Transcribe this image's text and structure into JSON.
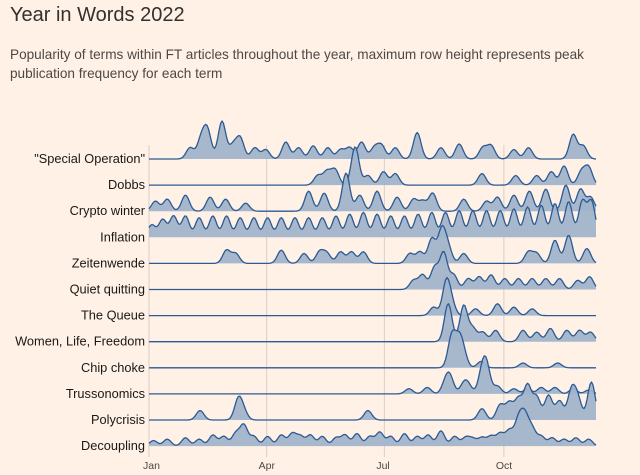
{
  "title": "Year in Words 2022",
  "subtitle": "Popularity of terms within FT articles throughout the year, maximum row height represents peak publication frequency for each term",
  "colors": {
    "background": "#fff1e5",
    "fill": "#9fb3cb",
    "stroke": "#2b5a94",
    "grid": "#d9cfc6",
    "text": "#33302e"
  },
  "chart_data": {
    "type": "ridgeline",
    "x_ticks": [
      "Jan",
      "Apr",
      "Jul",
      "Oct"
    ],
    "x_range": [
      "Jan",
      "Dec"
    ],
    "grid": "vertical lines at ticks",
    "series": [
      {
        "name": "\"Special Operation\"",
        "peaks": [
          [
            4.5,
            0.3
          ],
          [
            5.7,
            0.5
          ],
          [
            6.4,
            0.75
          ],
          [
            8.0,
            1.0
          ],
          [
            9.2,
            0.35
          ],
          [
            10.0,
            0.55
          ],
          [
            11.6,
            0.3
          ],
          [
            12.8,
            0.25
          ],
          [
            15.0,
            0.45
          ],
          [
            16.4,
            0.3
          ],
          [
            18.0,
            0.35
          ],
          [
            19.6,
            0.3
          ],
          [
            21.0,
            0.25
          ],
          [
            22.0,
            0.3
          ],
          [
            23.3,
            0.45
          ],
          [
            24.7,
            0.3
          ],
          [
            25.5,
            0.35
          ],
          [
            27.0,
            0.3
          ],
          [
            29.4,
            0.7
          ],
          [
            32.0,
            0.3
          ],
          [
            34.0,
            0.4
          ],
          [
            36.6,
            0.3
          ],
          [
            37.5,
            0.35
          ],
          [
            40.0,
            0.25
          ],
          [
            41.6,
            0.3
          ],
          [
            46.5,
            0.65
          ],
          [
            47.6,
            0.35
          ]
        ]
      },
      {
        "name": "Dobbs",
        "peaks": [
          [
            18.5,
            0.25
          ],
          [
            19.5,
            0.35
          ],
          [
            20.4,
            0.4
          ],
          [
            22.6,
            1.0
          ],
          [
            24.0,
            0.25
          ],
          [
            25.7,
            0.35
          ],
          [
            27.0,
            0.3
          ],
          [
            36.5,
            0.3
          ],
          [
            40.2,
            0.25
          ],
          [
            42.5,
            0.25
          ],
          [
            44.1,
            0.35
          ],
          [
            45.5,
            0.5
          ],
          [
            47.4,
            0.35
          ],
          [
            48.2,
            0.45
          ]
        ]
      },
      {
        "name": "Crypto winter",
        "peaks": [
          [
            0.7,
            0.25
          ],
          [
            2.0,
            0.3
          ],
          [
            4.0,
            0.4
          ],
          [
            6.7,
            0.35
          ],
          [
            8.4,
            0.3
          ],
          [
            10.6,
            0.2
          ],
          [
            17.5,
            0.5
          ],
          [
            19.2,
            0.45
          ],
          [
            21.6,
            0.95
          ],
          [
            23.1,
            0.4
          ],
          [
            25.0,
            0.5
          ],
          [
            27.2,
            0.35
          ],
          [
            29.0,
            0.3
          ],
          [
            30.0,
            0.25
          ],
          [
            31.1,
            0.45
          ],
          [
            34.5,
            0.3
          ],
          [
            37.0,
            0.25
          ],
          [
            38.2,
            0.35
          ],
          [
            40.0,
            0.4
          ],
          [
            41.7,
            0.5
          ],
          [
            43.5,
            0.55
          ],
          [
            45.7,
            0.65
          ],
          [
            47.3,
            0.55
          ],
          [
            48.4,
            0.35
          ]
        ]
      },
      {
        "name": "Inflation",
        "peaks": [
          [
            0.3,
            0.35
          ],
          [
            1.5,
            0.5
          ],
          [
            2.7,
            0.6
          ],
          [
            4.0,
            0.6
          ],
          [
            5.5,
            0.55
          ],
          [
            7.0,
            0.6
          ],
          [
            8.5,
            0.6
          ],
          [
            10.0,
            0.55
          ],
          [
            11.5,
            0.55
          ],
          [
            13.0,
            0.55
          ],
          [
            14.5,
            0.55
          ],
          [
            16.0,
            0.55
          ],
          [
            17.5,
            0.55
          ],
          [
            19.0,
            0.55
          ],
          [
            20.5,
            0.6
          ],
          [
            22.0,
            0.65
          ],
          [
            23.5,
            0.7
          ],
          [
            25.0,
            0.65
          ],
          [
            26.5,
            0.6
          ],
          [
            28.0,
            0.6
          ],
          [
            29.5,
            0.65
          ],
          [
            31.0,
            0.7
          ],
          [
            32.5,
            0.7
          ],
          [
            34.0,
            0.75
          ],
          [
            35.5,
            0.75
          ],
          [
            37.0,
            0.75
          ],
          [
            38.5,
            0.75
          ],
          [
            40.0,
            0.8
          ],
          [
            41.5,
            0.85
          ],
          [
            43.0,
            0.9
          ],
          [
            44.5,
            0.95
          ],
          [
            46.0,
            1.0
          ],
          [
            47.5,
            1.0
          ],
          [
            48.5,
            1.0
          ]
        ]
      },
      {
        "name": "Zeitenwende",
        "peaks": [
          [
            8.5,
            0.4
          ],
          [
            9.5,
            0.3
          ],
          [
            14.5,
            0.4
          ],
          [
            17.0,
            0.3
          ],
          [
            18.7,
            0.35
          ],
          [
            19.5,
            0.3
          ],
          [
            21.0,
            0.35
          ],
          [
            22.2,
            0.35
          ],
          [
            23.5,
            0.35
          ],
          [
            28.6,
            0.3
          ],
          [
            29.7,
            0.35
          ],
          [
            31.0,
            0.75
          ],
          [
            32.1,
            1.0
          ],
          [
            32.8,
            0.45
          ],
          [
            34.5,
            0.3
          ],
          [
            41.6,
            0.35
          ],
          [
            42.5,
            0.3
          ],
          [
            44.5,
            0.7
          ],
          [
            46.0,
            0.85
          ],
          [
            48.0,
            0.45
          ]
        ]
      },
      {
        "name": "Quiet quitting",
        "peaks": [
          [
            29.0,
            0.25
          ],
          [
            30.0,
            0.4
          ],
          [
            31.3,
            0.6
          ],
          [
            32.3,
            1.0
          ],
          [
            33.4,
            0.4
          ],
          [
            35.0,
            0.3
          ],
          [
            36.2,
            0.35
          ],
          [
            37.5,
            0.4
          ],
          [
            39.0,
            0.3
          ],
          [
            40.5,
            0.3
          ],
          [
            42.0,
            0.3
          ],
          [
            43.5,
            0.3
          ],
          [
            45.0,
            0.3
          ],
          [
            47.0,
            0.25
          ],
          [
            48.3,
            0.35
          ]
        ]
      },
      {
        "name": "The Queue",
        "peaks": [
          [
            31.2,
            0.25
          ],
          [
            32.6,
            1.0
          ],
          [
            33.2,
            0.3
          ],
          [
            35.8,
            0.2
          ],
          [
            38.2,
            0.35
          ],
          [
            40.0,
            0.25
          ],
          [
            42.0,
            0.2
          ]
        ]
      },
      {
        "name": "Women, Life, Freedom",
        "peaks": [
          [
            32.8,
            1.0
          ],
          [
            34.5,
            0.95
          ],
          [
            35.5,
            0.35
          ],
          [
            36.6,
            0.25
          ],
          [
            38.0,
            0.3
          ],
          [
            41.0,
            0.3
          ],
          [
            42.5,
            0.25
          ],
          [
            44.0,
            0.35
          ],
          [
            45.8,
            0.3
          ],
          [
            47.2,
            0.3
          ],
          [
            48.4,
            0.25
          ]
        ]
      },
      {
        "name": "Chip choke",
        "peaks": [
          [
            33.2,
            1.0
          ],
          [
            34.0,
            0.8
          ],
          [
            34.5,
            0.35
          ],
          [
            36.4,
            0.2
          ],
          [
            41.0,
            0.15
          ],
          [
            44.8,
            0.15
          ]
        ]
      },
      {
        "name": "Trussonomics",
        "peaks": [
          [
            28.5,
            0.2
          ],
          [
            30.5,
            0.25
          ],
          [
            32.5,
            0.4
          ],
          [
            33.0,
            0.6
          ],
          [
            34.5,
            0.35
          ],
          [
            35.0,
            0.3
          ],
          [
            36.5,
            0.75
          ],
          [
            37.0,
            1.0
          ],
          [
            38.2,
            0.3
          ],
          [
            40.0,
            0.2
          ],
          [
            41.5,
            0.2
          ],
          [
            43.0,
            0.25
          ],
          [
            44.5,
            0.25
          ],
          [
            46.5,
            0.2
          ],
          [
            48.2,
            0.15
          ]
        ]
      },
      {
        "name": "Polycrisis",
        "peaks": [
          [
            5.6,
            0.25
          ],
          [
            9.8,
            0.55
          ],
          [
            10.4,
            0.2
          ],
          [
            24.0,
            0.25
          ],
          [
            36.5,
            0.3
          ],
          [
            38.5,
            0.4
          ],
          [
            39.5,
            0.45
          ],
          [
            40.5,
            0.55
          ],
          [
            41.5,
            0.9
          ],
          [
            42.5,
            0.6
          ],
          [
            43.8,
            0.65
          ],
          [
            45.0,
            0.5
          ],
          [
            46.3,
            0.75
          ],
          [
            47.0,
            0.55
          ],
          [
            48.5,
            1.0
          ]
        ]
      },
      {
        "name": "Decoupling",
        "peaks": [
          [
            0.5,
            0.2
          ],
          [
            2.0,
            0.25
          ],
          [
            4.0,
            0.3
          ],
          [
            5.5,
            0.25
          ],
          [
            7.0,
            0.4
          ],
          [
            8.2,
            0.35
          ],
          [
            9.5,
            0.45
          ],
          [
            10.4,
            0.75
          ],
          [
            11.5,
            0.35
          ],
          [
            13.0,
            0.35
          ],
          [
            14.5,
            0.4
          ],
          [
            15.7,
            0.45
          ],
          [
            16.6,
            0.35
          ],
          [
            17.7,
            0.4
          ],
          [
            19.0,
            0.35
          ],
          [
            20.5,
            0.3
          ],
          [
            21.5,
            0.4
          ],
          [
            22.8,
            0.45
          ],
          [
            24.2,
            0.35
          ],
          [
            25.3,
            0.5
          ],
          [
            26.5,
            0.35
          ],
          [
            28.0,
            0.45
          ],
          [
            29.4,
            0.35
          ],
          [
            30.6,
            0.4
          ],
          [
            32.0,
            0.55
          ],
          [
            33.5,
            0.35
          ],
          [
            34.7,
            0.3
          ],
          [
            35.5,
            0.25
          ],
          [
            36.5,
            0.3
          ],
          [
            37.5,
            0.35
          ],
          [
            38.5,
            0.45
          ],
          [
            39.5,
            0.55
          ],
          [
            40.5,
            0.9
          ],
          [
            41.2,
            1.0
          ],
          [
            42.0,
            0.6
          ],
          [
            43.0,
            0.35
          ],
          [
            44.2,
            0.3
          ],
          [
            45.5,
            0.25
          ],
          [
            46.8,
            0.3
          ],
          [
            48.2,
            0.25
          ]
        ]
      }
    ]
  }
}
